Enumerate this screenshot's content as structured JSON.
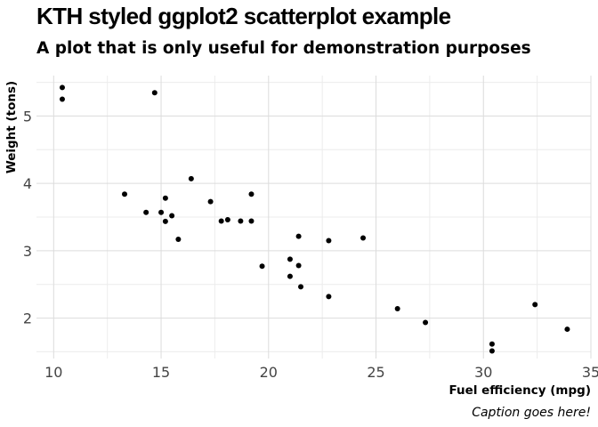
{
  "chart_data": {
    "type": "scatter",
    "title": "KTH styled ggplot2 scatterplot example",
    "subtitle": "A plot that is only useful for demonstration purposes",
    "xlabel": "Fuel efficiency (mpg)",
    "ylabel": "Weight (tons)",
    "caption": "Caption goes here!",
    "xlim": [
      9.2,
      35
    ],
    "ylim": [
      1.4,
      5.6
    ],
    "xticks": [
      10,
      15,
      20,
      25,
      30,
      35
    ],
    "yticks": [
      2,
      3,
      4,
      5
    ],
    "grid": true,
    "point_color": "#000000",
    "points": [
      {
        "x": 10.4,
        "y": 5.424
      },
      {
        "x": 10.4,
        "y": 5.25
      },
      {
        "x": 14.7,
        "y": 5.345
      },
      {
        "x": 13.3,
        "y": 3.84
      },
      {
        "x": 14.3,
        "y": 3.57
      },
      {
        "x": 15.0,
        "y": 3.57
      },
      {
        "x": 15.2,
        "y": 3.78
      },
      {
        "x": 15.2,
        "y": 3.435
      },
      {
        "x": 15.5,
        "y": 3.52
      },
      {
        "x": 15.8,
        "y": 3.17
      },
      {
        "x": 16.4,
        "y": 4.07
      },
      {
        "x": 17.3,
        "y": 3.73
      },
      {
        "x": 17.8,
        "y": 3.44
      },
      {
        "x": 18.1,
        "y": 3.46
      },
      {
        "x": 18.7,
        "y": 3.44
      },
      {
        "x": 19.2,
        "y": 3.84
      },
      {
        "x": 19.2,
        "y": 3.44
      },
      {
        "x": 19.7,
        "y": 2.77
      },
      {
        "x": 21.0,
        "y": 2.875
      },
      {
        "x": 21.0,
        "y": 2.62
      },
      {
        "x": 21.4,
        "y": 3.215
      },
      {
        "x": 21.4,
        "y": 2.78
      },
      {
        "x": 21.5,
        "y": 2.465
      },
      {
        "x": 22.8,
        "y": 3.15
      },
      {
        "x": 22.8,
        "y": 2.32
      },
      {
        "x": 24.4,
        "y": 3.19
      },
      {
        "x": 26.0,
        "y": 2.14
      },
      {
        "x": 27.3,
        "y": 1.935
      },
      {
        "x": 30.4,
        "y": 1.615
      },
      {
        "x": 30.4,
        "y": 1.513
      },
      {
        "x": 32.4,
        "y": 2.2
      },
      {
        "x": 33.9,
        "y": 1.835
      }
    ]
  }
}
